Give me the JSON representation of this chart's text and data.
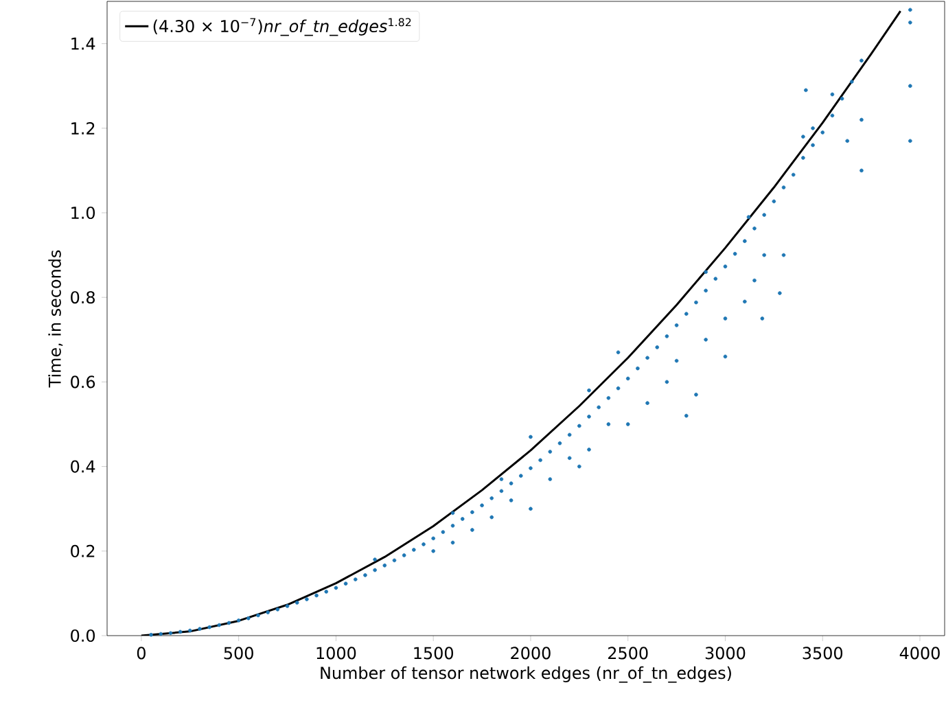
{
  "chart_data": {
    "type": "scatter",
    "xlabel": "Number of tensor network edges (nr_of_tn_edges)",
    "ylabel": "Time, in seconds",
    "xlim": [
      -176,
      4127
    ],
    "ylim": [
      0,
      1.5
    ],
    "xticks": [
      0,
      500,
      1000,
      1500,
      2000,
      2500,
      3000,
      3500,
      4000
    ],
    "yticks": [
      {
        "value": 0,
        "label": "0.0"
      },
      0.2,
      0.4,
      0.6,
      0.8,
      {
        "value": 1,
        "label": "1.0"
      },
      1.2,
      1.4
    ],
    "legend": "top left",
    "series": [
      {
        "color": "#1f77b4",
        "marker": "circle",
        "x": [
          50,
          100,
          150,
          200,
          250,
          300,
          350,
          400,
          450,
          500,
          550,
          600,
          650,
          700,
          750,
          800,
          850,
          900,
          950,
          1000,
          1050,
          1100,
          1150,
          1200,
          1250,
          1300,
          1350,
          1400,
          1450,
          1500,
          1550,
          1600,
          1650,
          1700,
          1750,
          1800,
          1850,
          1900,
          1950,
          2000,
          2050,
          2100,
          2150,
          2200,
          2250,
          2300,
          2350,
          2400,
          2450,
          2500,
          2550,
          2600,
          2650,
          2700,
          2750,
          2800,
          2850,
          2900,
          2950,
          3000,
          3050,
          3100,
          3150,
          3200,
          3250,
          3300,
          3350,
          3400,
          3450,
          3500,
          3550,
          3600,
          3650,
          3700,
          1200,
          1500,
          1600,
          1700,
          1800,
          1900,
          2000,
          2100,
          2200,
          2300,
          2250,
          2400,
          2500,
          2600,
          2700,
          2750,
          2800,
          2850,
          2900,
          3000,
          3000,
          3100,
          3150,
          3200,
          3300,
          3450,
          3700,
          3700,
          3950,
          3950,
          3950,
          3950,
          3550,
          3400,
          2300,
          2450,
          2000,
          1850,
          1600,
          2900,
          3120,
          3627,
          3414,
          3280,
          3190
        ],
        "values": [
          0.002,
          0.004,
          0.006,
          0.009,
          0.012,
          0.016,
          0.02,
          0.025,
          0.03,
          0.036,
          0.041,
          0.048,
          0.055,
          0.062,
          0.07,
          0.078,
          0.086,
          0.095,
          0.104,
          0.113,
          0.123,
          0.133,
          0.143,
          0.155,
          0.166,
          0.178,
          0.19,
          0.203,
          0.216,
          0.23,
          0.245,
          0.26,
          0.276,
          0.292,
          0.308,
          0.325,
          0.342,
          0.36,
          0.378,
          0.396,
          0.415,
          0.435,
          0.455,
          0.475,
          0.496,
          0.518,
          0.54,
          0.562,
          0.585,
          0.608,
          0.632,
          0.657,
          0.682,
          0.708,
          0.734,
          0.761,
          0.788,
          0.816,
          0.844,
          0.873,
          0.903,
          0.933,
          0.963,
          0.995,
          1.027,
          1.06,
          1.09,
          1.13,
          1.16,
          1.19,
          1.23,
          1.27,
          1.31,
          1.36,
          0.18,
          0.2,
          0.22,
          0.25,
          0.28,
          0.32,
          0.3,
          0.37,
          0.42,
          0.44,
          0.4,
          0.5,
          0.5,
          0.55,
          0.6,
          0.65,
          0.52,
          0.57,
          0.7,
          0.66,
          0.75,
          0.79,
          0.84,
          0.9,
          0.9,
          1.2,
          1.22,
          1.1,
          1.17,
          1.3,
          1.45,
          1.48,
          1.28,
          1.18,
          0.58,
          0.67,
          0.47,
          0.37,
          0.29,
          0.86,
          0.99,
          1.17,
          1.29,
          0.81,
          0.75
        ]
      },
      {
        "name": "(4.30 × 10$^{−7}$)*nr_of_tn_edges*$^{1.82}$",
        "type": "line",
        "marker": "none",
        "color": "#000000",
        "x": [
          0,
          250,
          500,
          750,
          1000,
          1250,
          1500,
          1750,
          2000,
          2250,
          2500,
          2750,
          3000,
          3250,
          3500,
          3750,
          3900
        ],
        "values": [
          0,
          0.01,
          0.035,
          0.073,
          0.124,
          0.186,
          0.259,
          0.344,
          0.438,
          0.543,
          0.657,
          0.782,
          0.917,
          1.06,
          1.213,
          1.376,
          1.477
        ]
      }
    ]
  }
}
